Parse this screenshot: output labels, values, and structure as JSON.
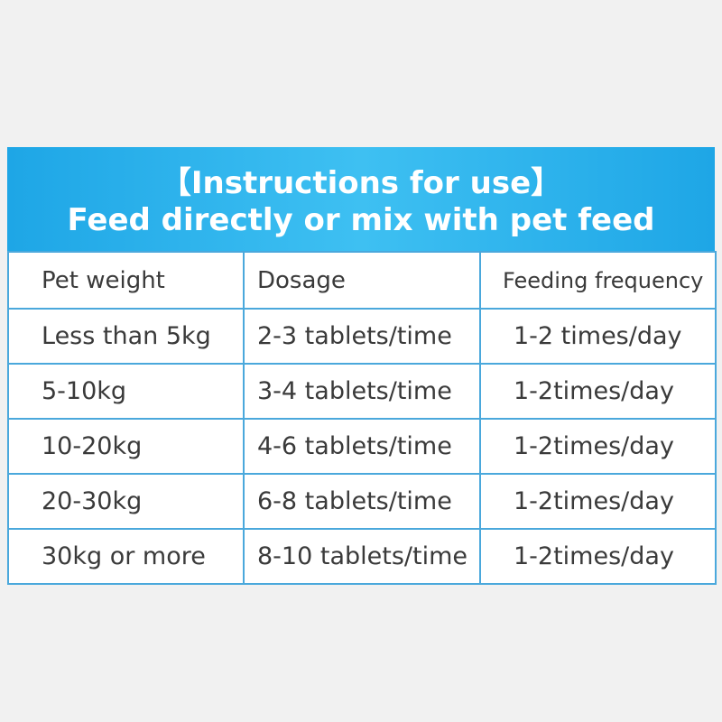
{
  "header": {
    "title": "【Instructions for use】",
    "subtitle": "Feed directly or mix with pet feed"
  },
  "table": {
    "columns": [
      "Pet weight",
      "Dosage",
      "Feeding frequency"
    ],
    "rows": [
      [
        "Less than 5kg",
        "2-3 tablets/time",
        "1-2 times/day"
      ],
      [
        "5-10kg",
        "3-4 tablets/time",
        "1-2times/day"
      ],
      [
        "10-20kg",
        "4-6 tablets/time",
        "1-2times/day"
      ],
      [
        "20-30kg",
        "6-8 tablets/time",
        "1-2times/day"
      ],
      [
        "30kg or more",
        "8-10 tablets/time",
        "1-2times/day"
      ]
    ]
  }
}
